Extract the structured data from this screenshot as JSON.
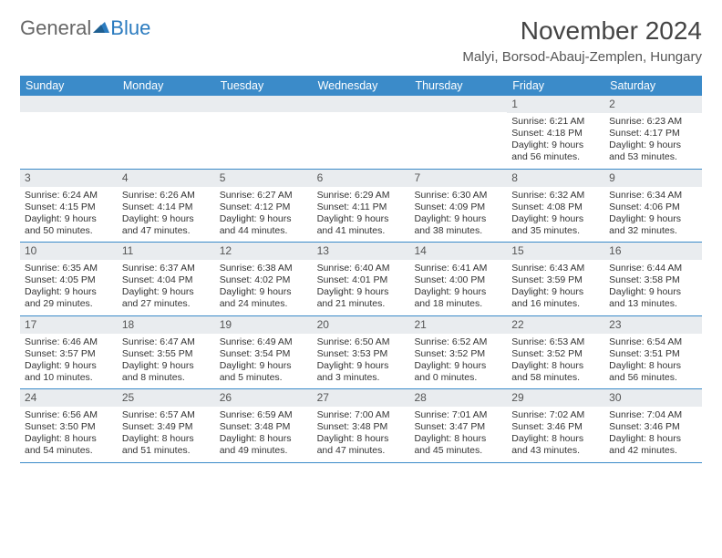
{
  "logo": {
    "text1": "General",
    "text2": "Blue"
  },
  "title": "November 2024",
  "location": "Malyi, Borsod-Abauj-Zemplen, Hungary",
  "colors": {
    "header_bg": "#3b8bc9",
    "header_text": "#ffffff",
    "daynum_bg": "#e9ecef",
    "border": "#3b8bc9",
    "body_text": "#333333",
    "logo_gray": "#666666",
    "logo_blue": "#2b7bbf"
  },
  "day_headers": [
    "Sunday",
    "Monday",
    "Tuesday",
    "Wednesday",
    "Thursday",
    "Friday",
    "Saturday"
  ],
  "weeks": [
    [
      {
        "empty": true
      },
      {
        "empty": true
      },
      {
        "empty": true
      },
      {
        "empty": true
      },
      {
        "empty": true
      },
      {
        "day": "1",
        "sunrise": "Sunrise: 6:21 AM",
        "sunset": "Sunset: 4:18 PM",
        "daylight": "Daylight: 9 hours and 56 minutes."
      },
      {
        "day": "2",
        "sunrise": "Sunrise: 6:23 AM",
        "sunset": "Sunset: 4:17 PM",
        "daylight": "Daylight: 9 hours and 53 minutes."
      }
    ],
    [
      {
        "day": "3",
        "sunrise": "Sunrise: 6:24 AM",
        "sunset": "Sunset: 4:15 PM",
        "daylight": "Daylight: 9 hours and 50 minutes."
      },
      {
        "day": "4",
        "sunrise": "Sunrise: 6:26 AM",
        "sunset": "Sunset: 4:14 PM",
        "daylight": "Daylight: 9 hours and 47 minutes."
      },
      {
        "day": "5",
        "sunrise": "Sunrise: 6:27 AM",
        "sunset": "Sunset: 4:12 PM",
        "daylight": "Daylight: 9 hours and 44 minutes."
      },
      {
        "day": "6",
        "sunrise": "Sunrise: 6:29 AM",
        "sunset": "Sunset: 4:11 PM",
        "daylight": "Daylight: 9 hours and 41 minutes."
      },
      {
        "day": "7",
        "sunrise": "Sunrise: 6:30 AM",
        "sunset": "Sunset: 4:09 PM",
        "daylight": "Daylight: 9 hours and 38 minutes."
      },
      {
        "day": "8",
        "sunrise": "Sunrise: 6:32 AM",
        "sunset": "Sunset: 4:08 PM",
        "daylight": "Daylight: 9 hours and 35 minutes."
      },
      {
        "day": "9",
        "sunrise": "Sunrise: 6:34 AM",
        "sunset": "Sunset: 4:06 PM",
        "daylight": "Daylight: 9 hours and 32 minutes."
      }
    ],
    [
      {
        "day": "10",
        "sunrise": "Sunrise: 6:35 AM",
        "sunset": "Sunset: 4:05 PM",
        "daylight": "Daylight: 9 hours and 29 minutes."
      },
      {
        "day": "11",
        "sunrise": "Sunrise: 6:37 AM",
        "sunset": "Sunset: 4:04 PM",
        "daylight": "Daylight: 9 hours and 27 minutes."
      },
      {
        "day": "12",
        "sunrise": "Sunrise: 6:38 AM",
        "sunset": "Sunset: 4:02 PM",
        "daylight": "Daylight: 9 hours and 24 minutes."
      },
      {
        "day": "13",
        "sunrise": "Sunrise: 6:40 AM",
        "sunset": "Sunset: 4:01 PM",
        "daylight": "Daylight: 9 hours and 21 minutes."
      },
      {
        "day": "14",
        "sunrise": "Sunrise: 6:41 AM",
        "sunset": "Sunset: 4:00 PM",
        "daylight": "Daylight: 9 hours and 18 minutes."
      },
      {
        "day": "15",
        "sunrise": "Sunrise: 6:43 AM",
        "sunset": "Sunset: 3:59 PM",
        "daylight": "Daylight: 9 hours and 16 minutes."
      },
      {
        "day": "16",
        "sunrise": "Sunrise: 6:44 AM",
        "sunset": "Sunset: 3:58 PM",
        "daylight": "Daylight: 9 hours and 13 minutes."
      }
    ],
    [
      {
        "day": "17",
        "sunrise": "Sunrise: 6:46 AM",
        "sunset": "Sunset: 3:57 PM",
        "daylight": "Daylight: 9 hours and 10 minutes."
      },
      {
        "day": "18",
        "sunrise": "Sunrise: 6:47 AM",
        "sunset": "Sunset: 3:55 PM",
        "daylight": "Daylight: 9 hours and 8 minutes."
      },
      {
        "day": "19",
        "sunrise": "Sunrise: 6:49 AM",
        "sunset": "Sunset: 3:54 PM",
        "daylight": "Daylight: 9 hours and 5 minutes."
      },
      {
        "day": "20",
        "sunrise": "Sunrise: 6:50 AM",
        "sunset": "Sunset: 3:53 PM",
        "daylight": "Daylight: 9 hours and 3 minutes."
      },
      {
        "day": "21",
        "sunrise": "Sunrise: 6:52 AM",
        "sunset": "Sunset: 3:52 PM",
        "daylight": "Daylight: 9 hours and 0 minutes."
      },
      {
        "day": "22",
        "sunrise": "Sunrise: 6:53 AM",
        "sunset": "Sunset: 3:52 PM",
        "daylight": "Daylight: 8 hours and 58 minutes."
      },
      {
        "day": "23",
        "sunrise": "Sunrise: 6:54 AM",
        "sunset": "Sunset: 3:51 PM",
        "daylight": "Daylight: 8 hours and 56 minutes."
      }
    ],
    [
      {
        "day": "24",
        "sunrise": "Sunrise: 6:56 AM",
        "sunset": "Sunset: 3:50 PM",
        "daylight": "Daylight: 8 hours and 54 minutes."
      },
      {
        "day": "25",
        "sunrise": "Sunrise: 6:57 AM",
        "sunset": "Sunset: 3:49 PM",
        "daylight": "Daylight: 8 hours and 51 minutes."
      },
      {
        "day": "26",
        "sunrise": "Sunrise: 6:59 AM",
        "sunset": "Sunset: 3:48 PM",
        "daylight": "Daylight: 8 hours and 49 minutes."
      },
      {
        "day": "27",
        "sunrise": "Sunrise: 7:00 AM",
        "sunset": "Sunset: 3:48 PM",
        "daylight": "Daylight: 8 hours and 47 minutes."
      },
      {
        "day": "28",
        "sunrise": "Sunrise: 7:01 AM",
        "sunset": "Sunset: 3:47 PM",
        "daylight": "Daylight: 8 hours and 45 minutes."
      },
      {
        "day": "29",
        "sunrise": "Sunrise: 7:02 AM",
        "sunset": "Sunset: 3:46 PM",
        "daylight": "Daylight: 8 hours and 43 minutes."
      },
      {
        "day": "30",
        "sunrise": "Sunrise: 7:04 AM",
        "sunset": "Sunset: 3:46 PM",
        "daylight": "Daylight: 8 hours and 42 minutes."
      }
    ]
  ]
}
